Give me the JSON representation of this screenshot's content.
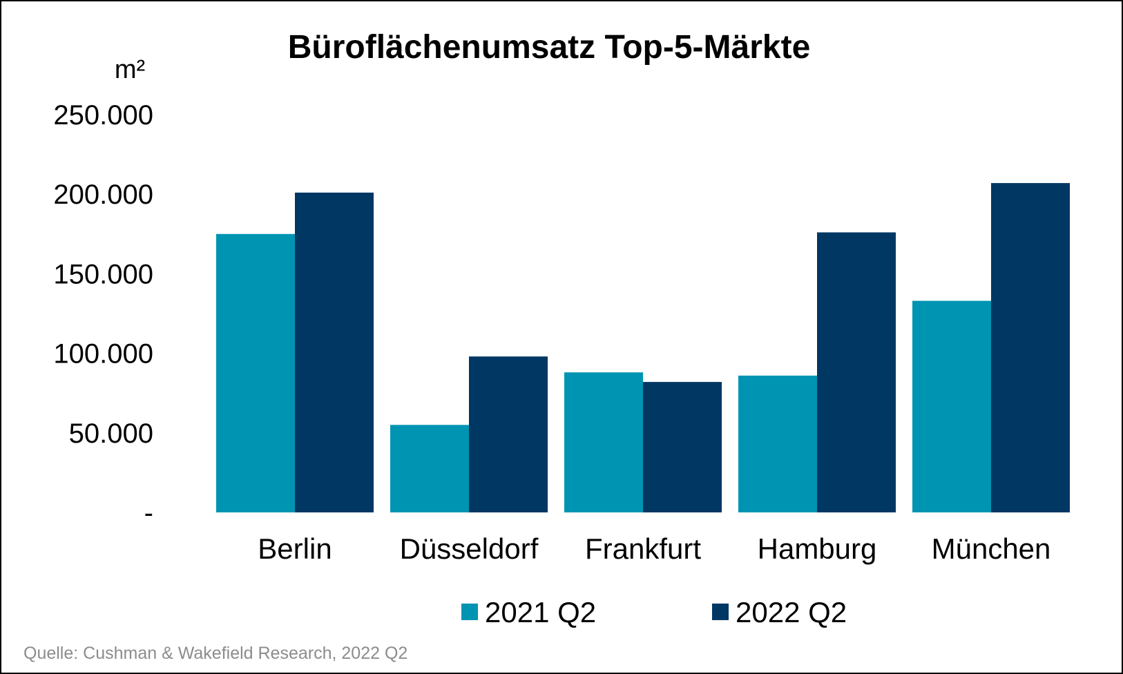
{
  "chart_data": {
    "type": "bar",
    "title": "Büroflächenumsatz Top-5-Märkte",
    "ylabel": "m²",
    "xlabel": "",
    "categories": [
      "Berlin",
      "Düsseldorf",
      "Frankfurt",
      "Hamburg",
      "München"
    ],
    "series": [
      {
        "name": "2021 Q2",
        "color": "#0094b3",
        "values": [
          175000,
          55000,
          88000,
          86000,
          133000
        ]
      },
      {
        "name": "2022 Q2",
        "color": "#003763",
        "values": [
          201000,
          98000,
          82000,
          176000,
          207000
        ]
      }
    ],
    "ylim": [
      0,
      250000
    ],
    "yticks": [
      0,
      50000,
      100000,
      150000,
      200000,
      250000
    ],
    "ytick_labels": [
      "-",
      "50.000",
      "100.000",
      "150.000",
      "200.000",
      "250.000"
    ],
    "grid": false,
    "legend_position": "bottom",
    "source_note": "Quelle: Cushman & Wakefield Research, 2022 Q2"
  }
}
